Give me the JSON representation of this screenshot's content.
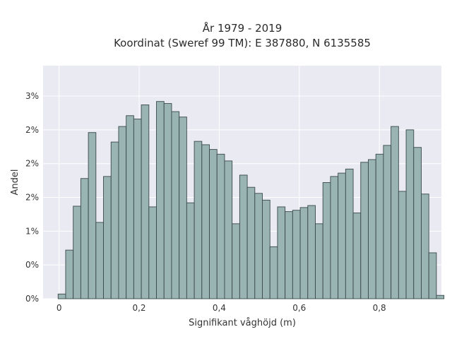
{
  "chart_data": {
    "type": "bar",
    "title": [
      "År 1979 - 2019",
      "Koordinat (Sweref 99 TM): E 387880, N 6135585"
    ],
    "xlabel": "Signifikant våghöjd (m)",
    "ylabel": "Andel",
    "xlim": [
      -0.04,
      0.955
    ],
    "ylim": [
      0,
      0.0345
    ],
    "xticks": [
      0,
      0.2,
      0.4,
      0.6,
      0.8
    ],
    "xtick_labels": [
      "0",
      "0,2",
      "0,4",
      "0,6",
      "0,8"
    ],
    "yticks": [
      0,
      0.005,
      0.01,
      0.015,
      0.02,
      0.025,
      0.03
    ],
    "ytick_labels": [
      "0%",
      "0%",
      "1%",
      "2%",
      "2%",
      "2%",
      "3%"
    ],
    "grid": true,
    "bin_start": -0.0025,
    "bin_width": 0.0189,
    "values": [
      0.0007,
      0.0072,
      0.0137,
      0.0178,
      0.0246,
      0.0113,
      0.0181,
      0.0232,
      0.0255,
      0.0271,
      0.0266,
      0.0287,
      0.0136,
      0.0292,
      0.0289,
      0.0277,
      0.0269,
      0.0142,
      0.0233,
      0.0228,
      0.0221,
      0.0214,
      0.0204,
      0.0111,
      0.0183,
      0.0165,
      0.0156,
      0.0146,
      0.0077,
      0.0136,
      0.0129,
      0.0131,
      0.0135,
      0.0138,
      0.0111,
      0.0172,
      0.0181,
      0.0186,
      0.0192,
      0.0127,
      0.0202,
      0.0206,
      0.0214,
      0.0227,
      0.0255,
      0.0159,
      0.025,
      0.0224,
      0.0155,
      0.0068,
      0.0005
    ],
    "colors": {
      "bar_fill": "#9ab3b3",
      "bar_edge": "#3a4a4a",
      "plot_bg": "#eaeaf2",
      "grid": "#ffffff"
    }
  }
}
